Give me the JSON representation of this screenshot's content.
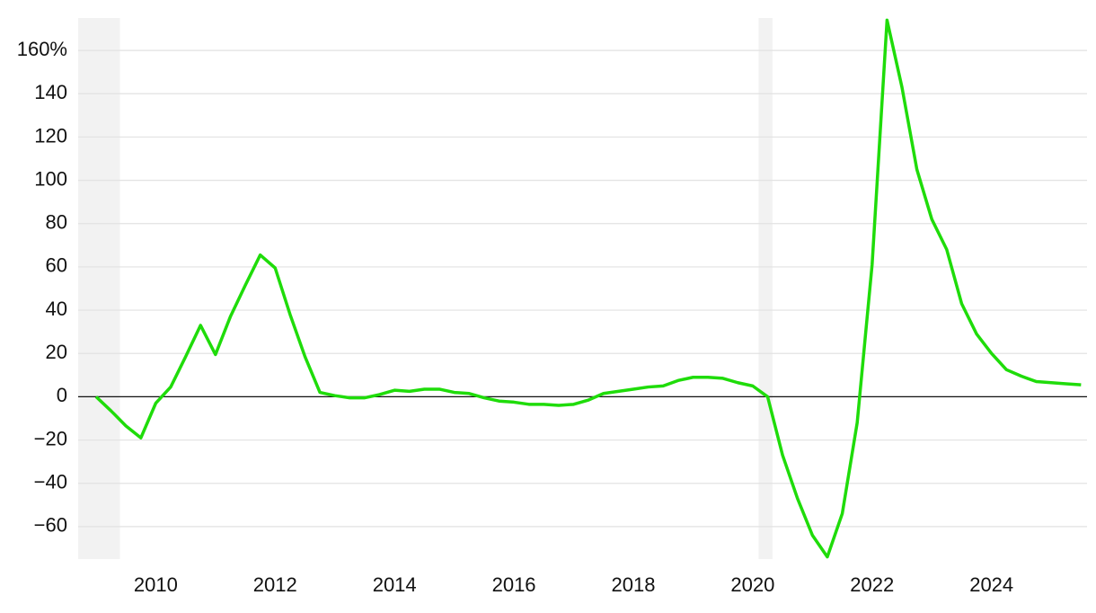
{
  "chart_data": {
    "type": "line",
    "x": [
      2009.0,
      2009.25,
      2009.5,
      2009.75,
      2010.0,
      2010.25,
      2010.5,
      2010.75,
      2011.0,
      2011.25,
      2011.5,
      2011.75,
      2012.0,
      2012.25,
      2012.5,
      2012.75,
      2013.0,
      2013.25,
      2013.5,
      2013.75,
      2014.0,
      2014.25,
      2014.5,
      2014.75,
      2015.0,
      2015.25,
      2015.5,
      2015.75,
      2016.0,
      2016.25,
      2016.5,
      2016.75,
      2017.0,
      2017.25,
      2017.5,
      2017.75,
      2018.0,
      2018.25,
      2018.5,
      2018.75,
      2019.0,
      2019.25,
      2019.5,
      2019.75,
      2020.0,
      2020.25,
      2020.5,
      2020.75,
      2021.0,
      2021.25,
      2021.5,
      2021.75,
      2022.0,
      2022.25,
      2022.5,
      2022.75,
      2023.0,
      2023.25,
      2023.5,
      2023.75,
      2024.0,
      2024.25,
      2024.5,
      2024.75,
      2025.0,
      2025.25,
      2025.5
    ],
    "series": [
      {
        "color": "#1fdc0a",
        "values": [
          0,
          -6.5,
          -13.5,
          -19,
          -3,
          4.5,
          18.5,
          33,
          19.5,
          37,
          51.5,
          65.5,
          59.5,
          38,
          18.5,
          2,
          0.5,
          -0.5,
          -0.5,
          1,
          3,
          2.5,
          3.5,
          3.5,
          2,
          1.5,
          -0.5,
          -2,
          -2.5,
          -3.5,
          -3.5,
          -4,
          -3.5,
          -1.5,
          1.5,
          2.5,
          3.5,
          4.5,
          5,
          7.5,
          9,
          9,
          8.5,
          6.5,
          5,
          0,
          -27,
          -47,
          -64,
          -74,
          -54,
          -12,
          61,
          174,
          143,
          105,
          82,
          68,
          43,
          29,
          20,
          12.5,
          9.5,
          7,
          6.5,
          6,
          5.5
        ]
      }
    ],
    "xlim": [
      2008.7,
      2025.6
    ],
    "xticks": [
      2010,
      2012,
      2014,
      2016,
      2018,
      2020,
      2022,
      2024
    ],
    "ylim": [
      -75,
      175
    ],
    "yticks": [
      {
        "value": -60,
        "label": "−60"
      },
      {
        "value": -40,
        "label": "−40"
      },
      {
        "value": -20,
        "label": "−20"
      },
      0,
      20,
      40,
      60,
      80,
      100,
      120,
      {
        "value": 140,
        "label": "140"
      },
      {
        "value": 160,
        "label": "160%"
      }
    ],
    "grid": true,
    "shaded_bands": [
      [
        2008.7,
        2009.4
      ],
      [
        2020.1,
        2020.33
      ]
    ]
  }
}
